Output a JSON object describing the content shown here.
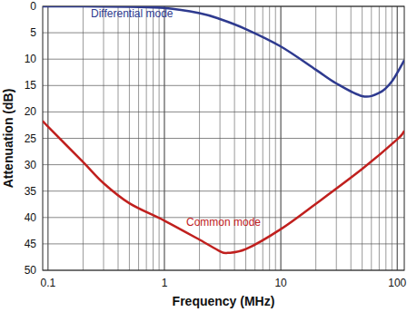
{
  "chart_data": {
    "type": "line",
    "x_label": "Frequency (MHz)",
    "y_label": "Attenuation (dB)",
    "log": "x",
    "grid": true,
    "xlim": [
      0.09,
      115
    ],
    "xticks": [
      0.1,
      1,
      10,
      100
    ],
    "ylim": [
      50,
      0
    ],
    "yticks": [
      0,
      5,
      10,
      15,
      20,
      25,
      30,
      35,
      40,
      45,
      50
    ],
    "series": [
      {
        "name": "Differential mode",
        "color": "#2e3a8f",
        "x": [
          0.09,
          0.2,
          0.5,
          1,
          2,
          3,
          5,
          10,
          20,
          30,
          50,
          70,
          90,
          115
        ],
        "values": [
          0,
          0,
          0.1,
          0.3,
          1.3,
          2.4,
          4.3,
          7.6,
          12,
          14.6,
          17,
          16.4,
          14.2,
          10.2
        ]
      },
      {
        "name": "Common mode",
        "color": "#c0201e",
        "x": [
          0.09,
          0.1,
          0.2,
          0.3,
          0.5,
          1,
          2,
          3,
          3.5,
          5,
          10,
          20,
          50,
          100,
          115
        ],
        "values": [
          21.7,
          22.8,
          29.5,
          33.5,
          37.3,
          40.6,
          44.2,
          46.4,
          46.7,
          46,
          42.2,
          37.4,
          30.8,
          25.2,
          23.6
        ]
      }
    ]
  }
}
